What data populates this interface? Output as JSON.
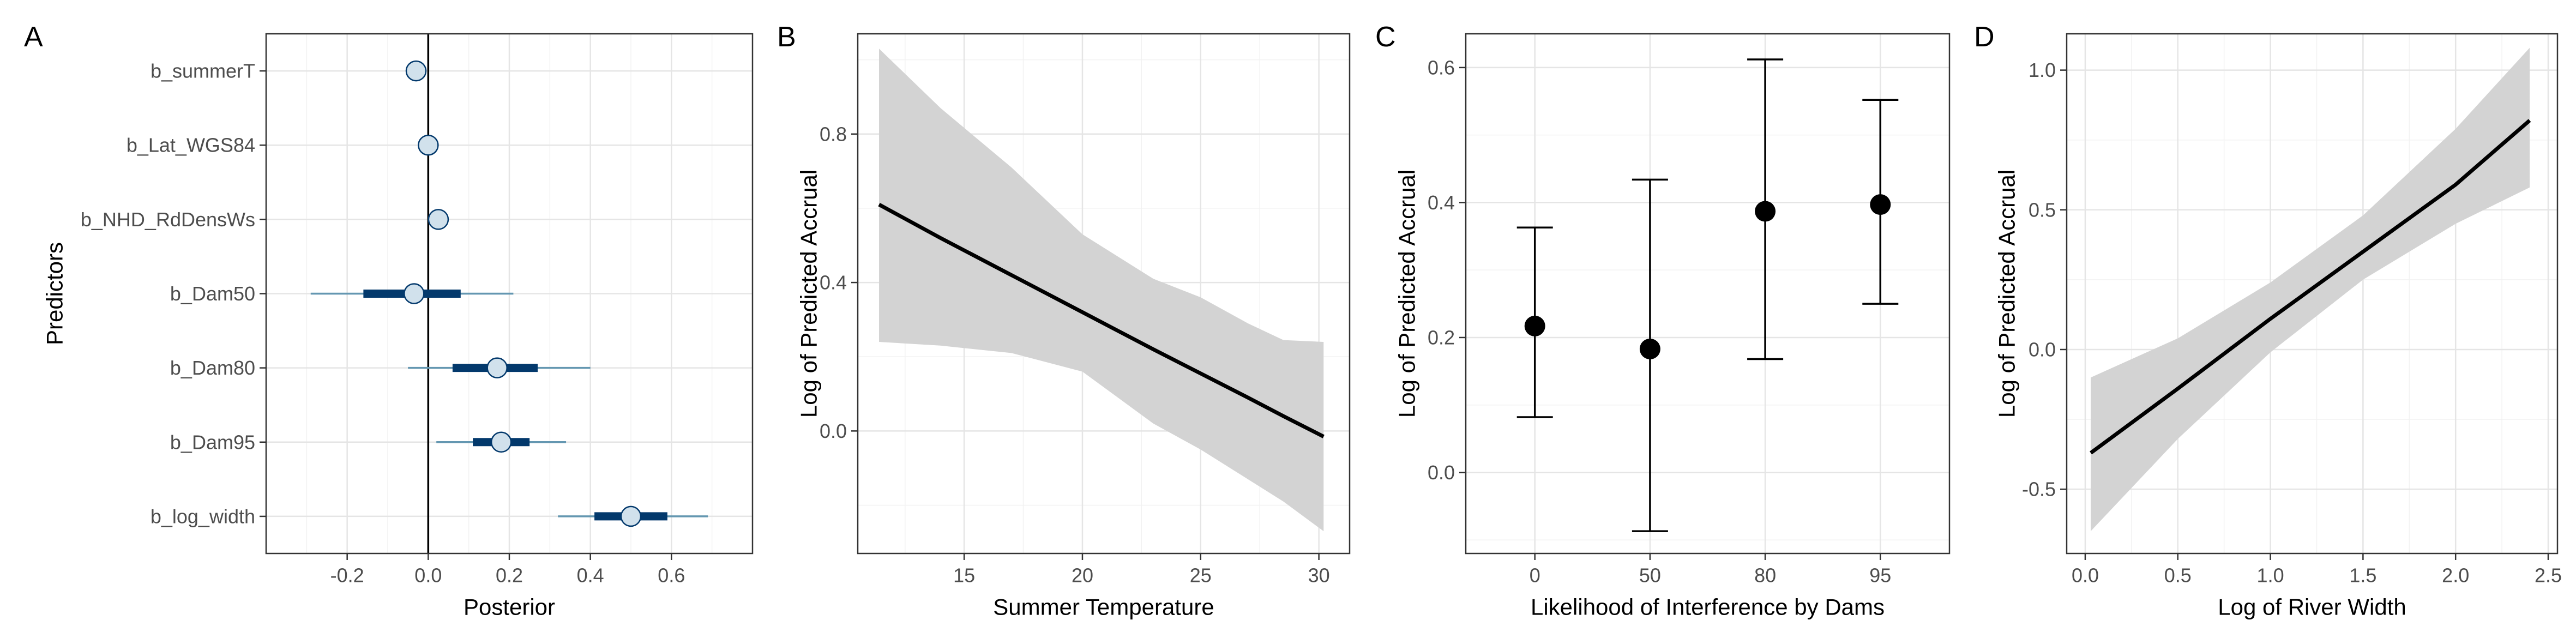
{
  "chart_data": [
    {
      "panel": "A",
      "type": "scatter",
      "subtype": "interval-plot",
      "xlabel": "Posterior",
      "ylabel": "Predictors",
      "xlim": [
        -0.4,
        0.8
      ],
      "xticks": [
        -0.2,
        0.0,
        0.2,
        0.4,
        0.6
      ],
      "xtick_labels": [
        "-0.2",
        "0.0",
        "0.2",
        "0.4",
        "0.6"
      ],
      "grid": true,
      "reference_line_x": 0,
      "colors": {
        "point_fill": "#d1e1ec",
        "point_stroke": "#03396c",
        "inner_interval": "#03396c",
        "outer_interval": "#6497b1"
      },
      "rows": [
        {
          "label": "b_summerT",
          "median": -0.03,
          "inner": [
            -0.045,
            -0.015
          ],
          "outer": [
            -0.055,
            -0.005
          ]
        },
        {
          "label": "b_Lat_WGS84",
          "median": 0.0,
          "inner": [
            -0.01,
            0.01
          ],
          "outer": [
            -0.02,
            0.02
          ]
        },
        {
          "label": "b_NHD_RdDensWs",
          "median": 0.025,
          "inner": [
            0.015,
            0.035
          ],
          "outer": [
            0.005,
            0.045
          ]
        },
        {
          "label": "b_Dam50",
          "median": -0.035,
          "inner": [
            -0.16,
            0.08
          ],
          "outer": [
            -0.29,
            0.21
          ]
        },
        {
          "label": "b_Dam80",
          "median": 0.17,
          "inner": [
            0.06,
            0.27
          ],
          "outer": [
            -0.05,
            0.4
          ]
        },
        {
          "label": "b_Dam95",
          "median": 0.18,
          "inner": [
            0.11,
            0.25
          ],
          "outer": [
            0.02,
            0.34
          ]
        },
        {
          "label": "b_log_width",
          "median": 0.5,
          "inner": [
            0.41,
            0.59
          ],
          "outer": [
            0.32,
            0.69
          ]
        }
      ]
    },
    {
      "panel": "B",
      "type": "line",
      "xlabel": "Summer Temperature",
      "ylabel": "Log of Predicted Accrual",
      "xlim": [
        10.5,
        31.3
      ],
      "ylim": [
        -0.33,
        1.07
      ],
      "xticks": [
        15,
        20,
        25,
        30
      ],
      "yticks": [
        0.0,
        0.4,
        0.8
      ],
      "ytick_labels": [
        "0.0",
        "0.4",
        "0.8"
      ],
      "grid": true,
      "band_color": "#d3d3d3",
      "x": [
        11.4,
        14,
        17,
        20,
        23,
        25,
        27,
        28.5,
        30.2
      ],
      "y": [
        0.61,
        0.52,
        0.42,
        0.32,
        0.22,
        0.155,
        0.09,
        0.04,
        -0.015
      ],
      "lower": [
        0.24,
        0.23,
        0.21,
        0.16,
        0.02,
        -0.05,
        -0.13,
        -0.19,
        -0.27
      ],
      "upper": [
        1.03,
        0.87,
        0.71,
        0.53,
        0.41,
        0.36,
        0.29,
        0.245,
        0.24
      ]
    },
    {
      "panel": "C",
      "type": "scatter",
      "subtype": "error-bars",
      "xlabel": "Likelihood of Interference by Dams",
      "ylabel": "Log of Predicted Accrual",
      "categories": [
        "0",
        "50",
        "80",
        "95"
      ],
      "ylim": [
        -0.12,
        0.65
      ],
      "yticks": [
        0.0,
        0.2,
        0.4,
        0.6
      ],
      "ytick_labels": [
        "0.0",
        "0.2",
        "0.4",
        "0.6"
      ],
      "grid": true,
      "values": [
        0.217,
        0.183,
        0.387,
        0.397
      ],
      "lower": [
        0.082,
        -0.087,
        0.168,
        0.25
      ],
      "upper": [
        0.363,
        0.434,
        0.612,
        0.552
      ]
    },
    {
      "panel": "D",
      "type": "line",
      "xlabel": "Log of River Width",
      "ylabel": "Log of Predicted Accrual",
      "xlim": [
        -0.1,
        2.55
      ],
      "ylim": [
        -0.73,
        1.13
      ],
      "xticks": [
        0.0,
        0.5,
        1.0,
        1.5,
        2.0,
        2.5
      ],
      "xtick_labels": [
        "0.0",
        "0.5",
        "1.0",
        "1.5",
        "2.0",
        "2.5"
      ],
      "yticks": [
        -0.5,
        0.0,
        0.5,
        1.0
      ],
      "ytick_labels": [
        "-0.5",
        "0.0",
        "0.5",
        "1.0"
      ],
      "grid": true,
      "band_color": "#d3d3d3",
      "x": [
        0.03,
        0.5,
        1.0,
        1.5,
        2.0,
        2.4
      ],
      "y": [
        -0.37,
        -0.14,
        0.11,
        0.35,
        0.59,
        0.82
      ],
      "lower": [
        -0.65,
        -0.32,
        -0.01,
        0.25,
        0.45,
        0.58
      ],
      "upper": [
        -0.1,
        0.04,
        0.24,
        0.48,
        0.79,
        1.08
      ]
    }
  ]
}
